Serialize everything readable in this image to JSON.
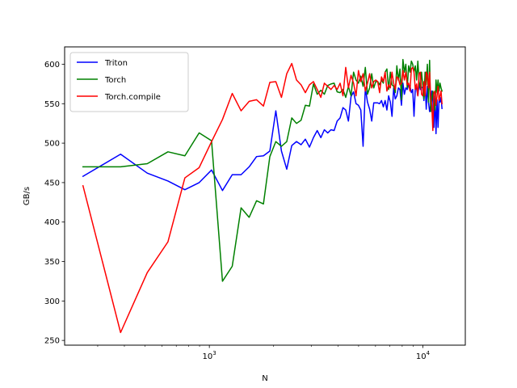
{
  "chart_data": {
    "type": "line",
    "title": "",
    "xlabel": "N",
    "ylabel": "GB/s",
    "xscale": "log",
    "xlim": [
      210,
      15800
    ],
    "ylim": [
      244,
      622
    ],
    "grid": false,
    "legend_position": "top-left",
    "x_ticks": [
      {
        "value": 1000,
        "base": "10",
        "exp": "3"
      },
      {
        "value": 10000,
        "base": "10",
        "exp": "4"
      }
    ],
    "y_ticks": [
      250,
      300,
      350,
      400,
      450,
      500,
      550,
      600
    ],
    "series": [
      {
        "name": "Triton",
        "color": "#0000ff",
        "x": [
          256,
          384,
          512,
          640,
          768,
          896,
          1024,
          1152,
          1280,
          1408,
          1536,
          1664,
          1792,
          1920,
          2048,
          2176,
          2304,
          2432,
          2560,
          2688,
          2816,
          2944,
          3072,
          3200,
          3328,
          3456,
          3584,
          3712,
          3840,
          3968,
          4096,
          4224,
          4352,
          4480,
          4608,
          4736,
          4864,
          4992,
          5120,
          5248,
          5376,
          5504,
          5632,
          5760,
          5888,
          6016,
          6144,
          6272,
          6400,
          6528,
          6656,
          6784,
          6912,
          7040,
          7168,
          7296,
          7424,
          7552,
          7680,
          7808,
          7936,
          8064,
          8192,
          8320,
          8448,
          8576,
          8704,
          8832,
          8960,
          9088,
          9216,
          9344,
          9472,
          9600,
          9728,
          9856,
          9984,
          10112,
          10240,
          10368,
          10496,
          10624,
          10752,
          10880,
          11008,
          11136,
          11264,
          11392,
          11520,
          11648,
          11776,
          11904,
          12032,
          12160,
          12288
        ],
        "y": [
          458,
          486,
          462,
          452,
          441,
          450,
          466,
          440,
          460,
          460,
          470,
          483,
          484,
          490,
          541,
          490,
          467,
          497,
          502,
          498,
          505,
          495,
          507,
          516,
          507,
          517,
          513,
          517,
          516,
          528,
          532,
          545,
          542,
          528,
          559,
          565,
          550,
          548,
          542,
          496,
          570,
          552,
          543,
          528,
          551,
          551,
          551,
          550,
          554,
          546,
          554,
          542,
          560,
          552,
          534,
          570,
          556,
          560,
          570,
          568,
          548,
          576,
          562,
          570,
          568,
          574,
          572,
          564,
          568,
          534,
          570,
          569,
          560,
          575,
          568,
          571,
          570,
          554,
          578,
          543,
          572,
          552,
          540,
          548,
          566,
          554,
          520,
          560,
          512,
          555,
          520,
          556,
          552,
          558,
          544
        ]
      },
      {
        "name": "Torch",
        "color": "#008000",
        "x": [
          256,
          384,
          512,
          640,
          768,
          896,
          1024,
          1152,
          1280,
          1408,
          1536,
          1664,
          1792,
          1920,
          2048,
          2176,
          2304,
          2432,
          2560,
          2688,
          2816,
          2944,
          3072,
          3200,
          3328,
          3456,
          3584,
          3712,
          3840,
          3968,
          4096,
          4224,
          4352,
          4480,
          4608,
          4736,
          4864,
          4992,
          5120,
          5248,
          5376,
          5504,
          5632,
          5760,
          5888,
          6016,
          6144,
          6272,
          6400,
          6528,
          6656,
          6784,
          6912,
          7040,
          7168,
          7296,
          7424,
          7552,
          7680,
          7808,
          7936,
          8064,
          8192,
          8320,
          8448,
          8576,
          8704,
          8832,
          8960,
          9088,
          9216,
          9344,
          9472,
          9600,
          9728,
          9856,
          9984,
          10112,
          10240,
          10368,
          10496,
          10624,
          10752,
          10880,
          11008,
          11136,
          11264,
          11392,
          11520,
          11648,
          11776,
          11904,
          12032,
          12160,
          12288
        ],
        "y": [
          470,
          470,
          474,
          489,
          484,
          513,
          503,
          325,
          344,
          418,
          406,
          427,
          423,
          483,
          502,
          496,
          502,
          532,
          525,
          529,
          548,
          547,
          575,
          562,
          567,
          562,
          573,
          575,
          576,
          565,
          564,
          568,
          558,
          572,
          560,
          590,
          580,
          576,
          585,
          572,
          596,
          562,
          570,
          588,
          570,
          578,
          578,
          574,
          580,
          576,
          590,
          594,
          568,
          590,
          574,
          572,
          564,
          598,
          580,
          594,
          555,
          606,
          590,
          600,
          570,
          598,
          590,
          604,
          600,
          590,
          598,
          580,
          604,
          578,
          570,
          590,
          574,
          556,
          590,
          574,
          600,
          552,
          605,
          540,
          556,
          566,
          550,
          542,
          580,
          564,
          580,
          566,
          576,
          570,
          566
        ]
      },
      {
        "name": "Torch.compile",
        "color": "#ff0000",
        "x": [
          256,
          384,
          512,
          640,
          768,
          896,
          1024,
          1152,
          1280,
          1408,
          1536,
          1664,
          1792,
          1920,
          2048,
          2176,
          2304,
          2432,
          2560,
          2688,
          2816,
          2944,
          3072,
          3200,
          3328,
          3456,
          3584,
          3712,
          3840,
          3968,
          4096,
          4224,
          4352,
          4480,
          4608,
          4736,
          4864,
          4992,
          5120,
          5248,
          5376,
          5504,
          5632,
          5760,
          5888,
          6016,
          6144,
          6272,
          6400,
          6528,
          6656,
          6784,
          6912,
          7040,
          7168,
          7296,
          7424,
          7552,
          7680,
          7808,
          7936,
          8064,
          8192,
          8320,
          8448,
          8576,
          8704,
          8832,
          8960,
          9088,
          9216,
          9344,
          9472,
          9600,
          9728,
          9856,
          9984,
          10112,
          10240,
          10368,
          10496,
          10624,
          10752,
          10880,
          11008,
          11136,
          11264,
          11392,
          11520,
          11648,
          11776,
          11904,
          12032,
          12160,
          12288
        ],
        "y": [
          446,
          260,
          336,
          375,
          456,
          469,
          502,
          530,
          563,
          541,
          553,
          555,
          547,
          577,
          578,
          558,
          588,
          601,
          580,
          574,
          564,
          574,
          578,
          568,
          558,
          576,
          572,
          568,
          573,
          568,
          576,
          560,
          596,
          570,
          586,
          576,
          560,
          592,
          578,
          588,
          566,
          576,
          588,
          570,
          578,
          580,
          578,
          564,
          584,
          578,
          590,
          566,
          574,
          570,
          590,
          576,
          568,
          584,
          582,
          574,
          576,
          592,
          580,
          590,
          574,
          576,
          566,
          594,
          596,
          590,
          568,
          575,
          560,
          588,
          590,
          562,
          560,
          578,
          560,
          590,
          586,
          570,
          590,
          556,
          548,
          516,
          564,
          566,
          548,
          560,
          572,
          554,
          560,
          566,
          550
        ]
      }
    ]
  }
}
